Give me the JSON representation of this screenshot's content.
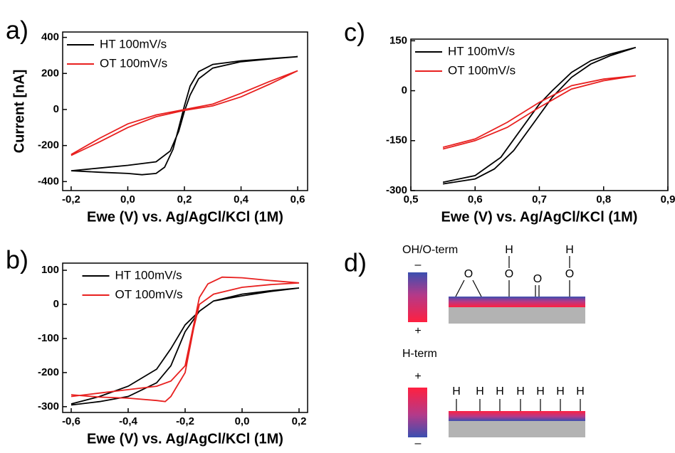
{
  "chart_data": [
    {
      "type": "line",
      "panel_label": "a)",
      "ylabel": "Current [nA]",
      "xlabel": "Ewe (V) vs. Ag/AgCl/KCl (1M)",
      "xlim": [
        -0.23,
        0.635
      ],
      "ylim": [
        -450,
        430
      ],
      "xticks": [
        {
          "value": -0.2,
          "label": "-0,2"
        },
        {
          "value": 0,
          "label": "0,0"
        },
        {
          "value": 0.2,
          "label": "0,2"
        },
        {
          "value": 0.4,
          "label": "0,4"
        },
        {
          "value": 0.6,
          "label": "0,6"
        }
      ],
      "yticks": [
        -400,
        -200,
        0,
        200,
        400
      ],
      "legend": "upper left",
      "series": [
        {
          "name": "HT 100mV/s",
          "color": "#000000",
          "x": [
            -0.2,
            -0.1,
            0.0,
            0.05,
            0.1,
            0.13,
            0.16,
            0.18,
            0.2,
            0.22,
            0.25,
            0.3,
            0.4,
            0.5,
            0.6,
            0.5,
            0.4,
            0.3,
            0.25,
            0.22,
            0.2,
            0.18,
            0.15,
            0.1,
            0.0,
            -0.1,
            -0.2
          ],
          "values": [
            -340,
            -348,
            -355,
            -362,
            -355,
            -320,
            -220,
            -100,
            20,
            130,
            210,
            250,
            270,
            282,
            293,
            280,
            265,
            230,
            170,
            80,
            -10,
            -120,
            -230,
            -290,
            -310,
            -325,
            -340
          ]
        },
        {
          "name": "OT 100mV/s",
          "color": "#e8201f",
          "x": [
            -0.2,
            -0.1,
            0.0,
            0.1,
            0.2,
            0.3,
            0.4,
            0.5,
            0.6,
            0.5,
            0.4,
            0.3,
            0.2,
            0.1,
            0.0,
            -0.1,
            -0.2
          ],
          "values": [
            -250,
            -160,
            -80,
            -30,
            0,
            30,
            90,
            155,
            215,
            140,
            70,
            20,
            -5,
            -40,
            -100,
            -180,
            -255
          ]
        }
      ]
    },
    {
      "type": "line",
      "panel_label": "b)",
      "xlabel": "Ewe (V) vs. Ag/AgCl/KCl (1M)",
      "xlim": [
        -0.63,
        0.23
      ],
      "ylim": [
        -317,
        121
      ],
      "xticks": [
        {
          "value": -0.6,
          "label": "-0,6"
        },
        {
          "value": -0.4,
          "label": "-0,4"
        },
        {
          "value": -0.2,
          "label": "-0,2"
        },
        {
          "value": 0,
          "label": "0,0"
        },
        {
          "value": 0.2,
          "label": "0,2"
        }
      ],
      "yticks": [
        -300,
        -200,
        -100,
        0,
        100
      ],
      "legend": "upper center",
      "series": [
        {
          "name": "HT 100mV/s",
          "color": "#000000",
          "x": [
            -0.6,
            -0.5,
            -0.4,
            -0.3,
            -0.25,
            -0.2,
            -0.15,
            -0.1,
            0.0,
            0.1,
            0.2,
            0.1,
            0.0,
            -0.1,
            -0.15,
            -0.2,
            -0.25,
            -0.3,
            -0.4,
            -0.5,
            -0.6
          ],
          "values": [
            -295,
            -285,
            -270,
            -230,
            -180,
            -80,
            -20,
            10,
            25,
            38,
            48,
            40,
            30,
            10,
            -20,
            -60,
            -130,
            -190,
            -240,
            -270,
            -292
          ]
        },
        {
          "name": "OT 100mV/s",
          "color": "#e8201f",
          "x": [
            -0.6,
            -0.5,
            -0.4,
            -0.3,
            -0.25,
            -0.2,
            -0.17,
            -0.15,
            -0.12,
            -0.07,
            0.0,
            0.1,
            0.2,
            0.1,
            0.0,
            -0.1,
            -0.15,
            -0.17,
            -0.2,
            -0.25,
            -0.27,
            -0.3,
            -0.4,
            -0.5,
            -0.6
          ],
          "values": [
            -270,
            -260,
            -250,
            -240,
            -225,
            -180,
            -60,
            20,
            60,
            80,
            78,
            70,
            63,
            58,
            50,
            30,
            0,
            -70,
            -200,
            -270,
            -285,
            -282,
            -275,
            -272,
            -265
          ]
        }
      ]
    },
    {
      "type": "line",
      "panel_label": "c)",
      "xlabel": "Ewe (V) vs. Ag/AgCl/KCl (1M)",
      "xlim": [
        0.5,
        0.9
      ],
      "ylim": [
        -300,
        155
      ],
      "xticks": [
        {
          "value": 0.5,
          "label": "0,5"
        },
        {
          "value": 0.6,
          "label": "0,6"
        },
        {
          "value": 0.7,
          "label": "0,7"
        },
        {
          "value": 0.8,
          "label": "0,8"
        },
        {
          "value": 0.9,
          "label": "0,9"
        }
      ],
      "yticks": [
        -300,
        -150,
        0,
        150
      ],
      "legend": "upper left",
      "series": [
        {
          "name": "HT 100mV/s",
          "color": "#000000",
          "x": [
            0.55,
            0.6,
            0.63,
            0.66,
            0.69,
            0.72,
            0.75,
            0.78,
            0.81,
            0.85,
            0.81,
            0.78,
            0.75,
            0.72,
            0.7,
            0.67,
            0.64,
            0.6,
            0.55
          ],
          "values": [
            -280,
            -265,
            -235,
            -180,
            -100,
            -20,
            40,
            80,
            105,
            130,
            110,
            90,
            55,
            0,
            -40,
            -120,
            -200,
            -255,
            -275
          ]
        },
        {
          "name": "OT 100mV/s",
          "color": "#e8201f",
          "x": [
            0.55,
            0.6,
            0.65,
            0.7,
            0.75,
            0.8,
            0.85,
            0.8,
            0.75,
            0.7,
            0.65,
            0.6,
            0.55
          ],
          "values": [
            -175,
            -150,
            -110,
            -50,
            5,
            30,
            45,
            35,
            15,
            -35,
            -95,
            -145,
            -170
          ]
        }
      ]
    }
  ],
  "diagram": {
    "panel_label": "d)",
    "top": {
      "title": "OH/O-term",
      "minus": "–",
      "plus": "+",
      "atoms": [
        "O",
        "H",
        "O",
        "O",
        "H",
        "O"
      ]
    },
    "bottom": {
      "title": "H-term",
      "plus": "+",
      "minus": "–",
      "atoms": [
        "H",
        "H",
        "H",
        "H",
        "H",
        "H",
        "H"
      ]
    }
  }
}
